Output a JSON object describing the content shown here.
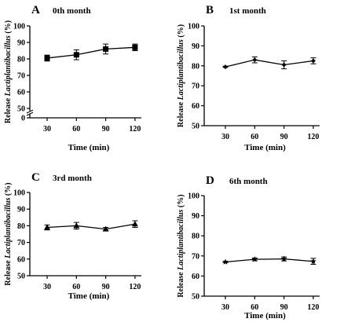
{
  "figure": {
    "xlabel_text": "Time (min)",
    "ylabel_prefix": "Release ",
    "ylabel_italic": "Lactiplantibacillus",
    "ylabel_suffix": " (%)"
  },
  "chart_data": [
    {
      "type": "line",
      "panel_letter": "A",
      "title": "0th month",
      "xlabel": "Time (min)",
      "ylabel": "Release Lactiplantibacillus (%)",
      "categories": [
        "30",
        "60",
        "90",
        "120"
      ],
      "ylim": [
        0,
        100
      ],
      "yticks": [
        0,
        50,
        60,
        70,
        80,
        90,
        100
      ],
      "axis_break": true,
      "marker": "square",
      "series": [
        {
          "values": [
            80.5,
            82.5,
            86,
            87
          ],
          "errors": [
            1.8,
            3,
            3,
            2
          ]
        }
      ]
    },
    {
      "type": "line",
      "panel_letter": "B",
      "title": "1st month",
      "xlabel": "Time (min)",
      "ylabel": "Release Lactiplantibacillus (%)",
      "categories": [
        "30",
        "60",
        "90",
        "120"
      ],
      "ylim": [
        50,
        100
      ],
      "yticks": [
        50,
        60,
        70,
        80,
        90,
        100
      ],
      "axis_break": false,
      "marker": "diamond",
      "series": [
        {
          "values": [
            79.5,
            83,
            80.5,
            82.5
          ],
          "errors": [
            0.3,
            1.5,
            2,
            1.5
          ]
        }
      ]
    },
    {
      "type": "line",
      "panel_letter": "C",
      "title": "3rd month",
      "xlabel": "Time (min)",
      "ylabel": "Release Lactiplantibacillus (%)",
      "categories": [
        "30",
        "60",
        "90",
        "120"
      ],
      "ylim": [
        50,
        100
      ],
      "yticks": [
        50,
        60,
        70,
        80,
        90,
        100
      ],
      "axis_break": false,
      "marker": "triangle",
      "series": [
        {
          "values": [
            79,
            80,
            78,
            81
          ],
          "errors": [
            1.5,
            2,
            1,
            2
          ]
        }
      ]
    },
    {
      "type": "line",
      "panel_letter": "D",
      "title": "6th month",
      "xlabel": "Time (min)",
      "ylabel": "Release Lactiplantibacillus (%)",
      "categories": [
        "30",
        "60",
        "90",
        "120"
      ],
      "ylim": [
        50,
        100
      ],
      "yticks": [
        50,
        60,
        70,
        80,
        90,
        100
      ],
      "axis_break": false,
      "marker": "star",
      "series": [
        {
          "values": [
            67,
            68.3,
            68.5,
            67.3
          ],
          "errors": [
            0.3,
            0.7,
            1,
            1.5
          ]
        }
      ]
    }
  ]
}
